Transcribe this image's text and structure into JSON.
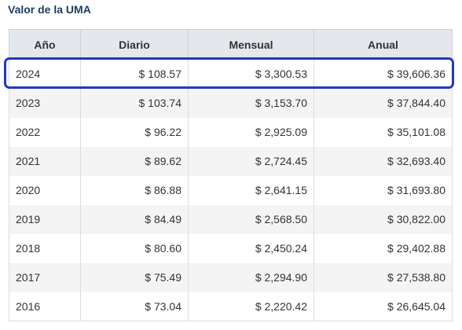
{
  "title": "Valor de la UMA",
  "headers": {
    "year": "Año",
    "daily": "Diario",
    "monthly": "Mensual",
    "annual": "Anual"
  },
  "highlighted_row": "2024",
  "rows": [
    {
      "year": "2024",
      "daily": "$ 108.57",
      "monthly": "$ 3,300.53",
      "annual": "$ 39,606.36"
    },
    {
      "year": "2023",
      "daily": "$ 103.74",
      "monthly": "$ 3,153.70",
      "annual": "$ 37,844.40"
    },
    {
      "year": "2022",
      "daily": "$ 96.22",
      "monthly": "$ 2,925.09",
      "annual": "$ 35,101.08"
    },
    {
      "year": "2021",
      "daily": "$ 89.62",
      "monthly": "$ 2,724.45",
      "annual": "$ 32,693.40"
    },
    {
      "year": "2020",
      "daily": "$ 86.88",
      "monthly": "$ 2,641.15",
      "annual": "$ 31,693.80"
    },
    {
      "year": "2019",
      "daily": "$ 84.49",
      "monthly": "$ 2,568.50",
      "annual": "$ 30,822.00"
    },
    {
      "year": "2018",
      "daily": "$ 80.60",
      "monthly": "$ 2,450.24",
      "annual": "$ 29,402.88"
    },
    {
      "year": "2017",
      "daily": "$ 75.49",
      "monthly": "$ 2,294.90",
      "annual": "$ 27,538.80"
    },
    {
      "year": "2016",
      "daily": "$ 73.04",
      "monthly": "$ 2,220.42",
      "annual": "$ 26,645.04"
    }
  ],
  "colors": {
    "title": "#1c3c5c",
    "header_bg": "#e4e8ed",
    "stripe": "#f4f4f4",
    "highlight_border": "#2437c2"
  }
}
